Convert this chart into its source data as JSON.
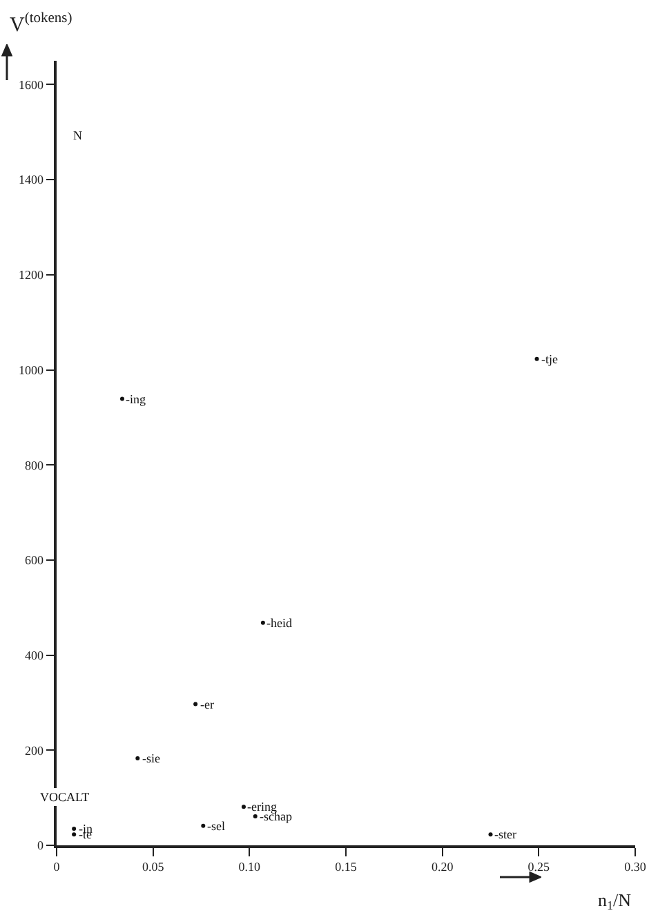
{
  "chart_data": {
    "type": "scatter",
    "xlabel": "n$_{1}$/N",
    "ylabel": "V$^{(tokens)}$",
    "marker": "circle",
    "grid": false,
    "xlim": [
      0,
      0.3
    ],
    "ylim": [
      0,
      1650
    ],
    "xticks": [
      0,
      0.05,
      {
        "value": 0.1,
        "label": "0.10"
      },
      0.15,
      {
        "value": 0.2,
        "label": "0.20"
      },
      0.25,
      {
        "value": 0.3,
        "label": "0.30"
      }
    ],
    "yticks": [
      0,
      200,
      400,
      600,
      800,
      1000,
      1200,
      1400,
      1600
    ],
    "series": [
      {
        "color": "#111111",
        "x": [
          0.249,
          0.034,
          0.107,
          0.072,
          0.042,
          0.097,
          0.103,
          0.076,
          0.009,
          0.009,
          0.225
        ],
        "values": [
          1023,
          939,
          468,
          297,
          183,
          81,
          61,
          41,
          35,
          23,
          23
        ]
      }
    ],
    "annotations": [
      {
        "text": "-tje",
        "x": 0.249,
        "y": 1023
      },
      {
        "text": "-ing",
        "x": 0.034,
        "y": 939
      },
      {
        "text": "N",
        "x": 0.011,
        "y": 1494
      },
      {
        "text": "-heid",
        "x": 0.107,
        "y": 468
      },
      {
        "text": "-er",
        "x": 0.072,
        "y": 297
      },
      {
        "text": "-sie",
        "x": 0.042,
        "y": 183
      },
      {
        "text": "VOCALT",
        "x": 0.004,
        "y": 102
      },
      {
        "text": "-ering",
        "x": 0.097,
        "y": 81
      },
      {
        "text": "-schap",
        "x": 0.103,
        "y": 61
      },
      {
        "text": "-sel",
        "x": 0.076,
        "y": 41
      },
      {
        "text": "-in",
        "x": 0.009,
        "y": 35
      },
      {
        "text": "-te",
        "x": 0.009,
        "y": 23
      },
      {
        "text": "-ster",
        "x": 0.225,
        "y": 23
      }
    ]
  }
}
